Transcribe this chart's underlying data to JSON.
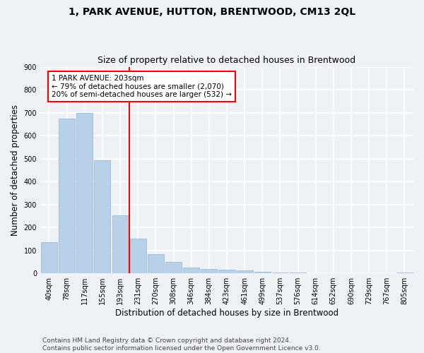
{
  "title": "1, PARK AVENUE, HUTTON, BRENTWOOD, CM13 2QL",
  "subtitle": "Size of property relative to detached houses in Brentwood",
  "xlabel": "Distribution of detached houses by size in Brentwood",
  "ylabel": "Number of detached properties",
  "bin_labels": [
    "40sqm",
    "78sqm",
    "117sqm",
    "155sqm",
    "193sqm",
    "231sqm",
    "270sqm",
    "308sqm",
    "346sqm",
    "384sqm",
    "423sqm",
    "461sqm",
    "499sqm",
    "537sqm",
    "576sqm",
    "614sqm",
    "652sqm",
    "690sqm",
    "729sqm",
    "767sqm",
    "805sqm"
  ],
  "bar_values": [
    135,
    675,
    700,
    492,
    252,
    152,
    84,
    50,
    25,
    20,
    15,
    12,
    7,
    4,
    3,
    2,
    2,
    2,
    1,
    1,
    5
  ],
  "bar_color": "#b8d0e8",
  "bar_edge_color": "#90b4d4",
  "vline_index": 4.5,
  "annotation_text_line1": "1 PARK AVENUE: 203sqm",
  "annotation_text_line2": "← 79% of detached houses are smaller (2,070)",
  "annotation_text_line3": "20% of semi-detached houses are larger (532) →",
  "annotation_box_color": "white",
  "annotation_box_edge": "red",
  "vline_color": "red",
  "ylim": [
    0,
    900
  ],
  "yticks": [
    0,
    100,
    200,
    300,
    400,
    500,
    600,
    700,
    800,
    900
  ],
  "footer_text": "Contains HM Land Registry data © Crown copyright and database right 2024.\nContains public sector information licensed under the Open Government Licence v3.0.",
  "bg_color": "#eef2f7",
  "grid_color": "#ffffff",
  "title_fontsize": 10,
  "subtitle_fontsize": 9,
  "axis_label_fontsize": 8.5,
  "tick_fontsize": 7,
  "footer_fontsize": 6.5,
  "annotation_fontsize": 7.5
}
